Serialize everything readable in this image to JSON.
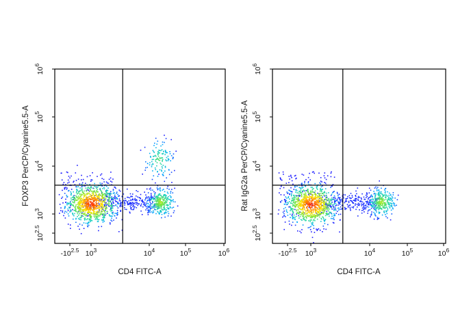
{
  "chart_data": [
    {
      "type": "scatter",
      "subtype": "flow-cytometry density dot plot",
      "title": "",
      "xlabel": "CD4 FITC-A",
      "ylabel": "FOXP3 PerCP/Cyanine5.5-A",
      "x_scale": "biexponential (log decades)",
      "y_scale": "biexponential (log decades)",
      "x_ticks": [
        {
          "base": "-10",
          "exp": "2.5",
          "value": -316
        },
        {
          "base": "10",
          "exp": "3",
          "value": 1000
        },
        {
          "base": "10",
          "exp": "4",
          "value": 10000
        },
        {
          "base": "10",
          "exp": "5",
          "value": 100000
        },
        {
          "base": "10",
          "exp": "6",
          "value": 1000000
        }
      ],
      "y_ticks": [
        {
          "base": "10",
          "exp": "2.5",
          "value": 316
        },
        {
          "base": "10",
          "exp": "3",
          "value": 1000
        },
        {
          "base": "10",
          "exp": "4",
          "value": 10000
        },
        {
          "base": "10",
          "exp": "5",
          "value": 100000
        },
        {
          "base": "10",
          "exp": "6",
          "value": 1000000
        }
      ],
      "quadrant_gate": {
        "x": 3500,
        "y": 4000
      },
      "populations": [
        {
          "name": "",
          "center_x": 1000,
          "center_y": 1700,
          "relative_density": 1.0
        },
        {
          "name": "",
          "center_x": 20000,
          "center_y": 1800,
          "relative_density": 0.35
        },
        {
          "name": "",
          "center_x": 18000,
          "center_y": 14000,
          "relative_density": 0.15
        }
      ],
      "grid": false,
      "legend": "none",
      "colors": {
        "low": "#1a1aff",
        "mid": "#1fd6b0",
        "high": "#ff2a00",
        "gate": "#000000"
      }
    },
    {
      "type": "scatter",
      "subtype": "flow-cytometry density dot plot",
      "title": "",
      "xlabel": "CD4 FITC-A",
      "ylabel": "Rat IgG2a PerCP/Cyanine5.5-A",
      "x_scale": "biexponential (log decades)",
      "y_scale": "biexponential (log decades)",
      "x_ticks": [
        {
          "base": "-10",
          "exp": "2.5",
          "value": -316
        },
        {
          "base": "10",
          "exp": "3",
          "value": 1000
        },
        {
          "base": "10",
          "exp": "4",
          "value": 10000
        },
        {
          "base": "10",
          "exp": "5",
          "value": 100000
        },
        {
          "base": "10",
          "exp": "6",
          "value": 1000000
        }
      ],
      "y_ticks": [
        {
          "base": "10",
          "exp": "2.5",
          "value": 316
        },
        {
          "base": "10",
          "exp": "3",
          "value": 1000
        },
        {
          "base": "10",
          "exp": "4",
          "value": 10000
        },
        {
          "base": "10",
          "exp": "5",
          "value": 100000
        },
        {
          "base": "10",
          "exp": "6",
          "value": 1000000
        }
      ],
      "quadrant_gate": {
        "x": 3500,
        "y": 4000
      },
      "populations": [
        {
          "name": "",
          "center_x": 1000,
          "center_y": 1600,
          "relative_density": 1.0
        },
        {
          "name": "",
          "center_x": 20000,
          "center_y": 1800,
          "relative_density": 0.35
        }
      ],
      "grid": false,
      "legend": "none",
      "colors": {
        "low": "#1a1aff",
        "mid": "#1fd6b0",
        "high": "#ff2a00",
        "gate": "#000000"
      }
    }
  ]
}
